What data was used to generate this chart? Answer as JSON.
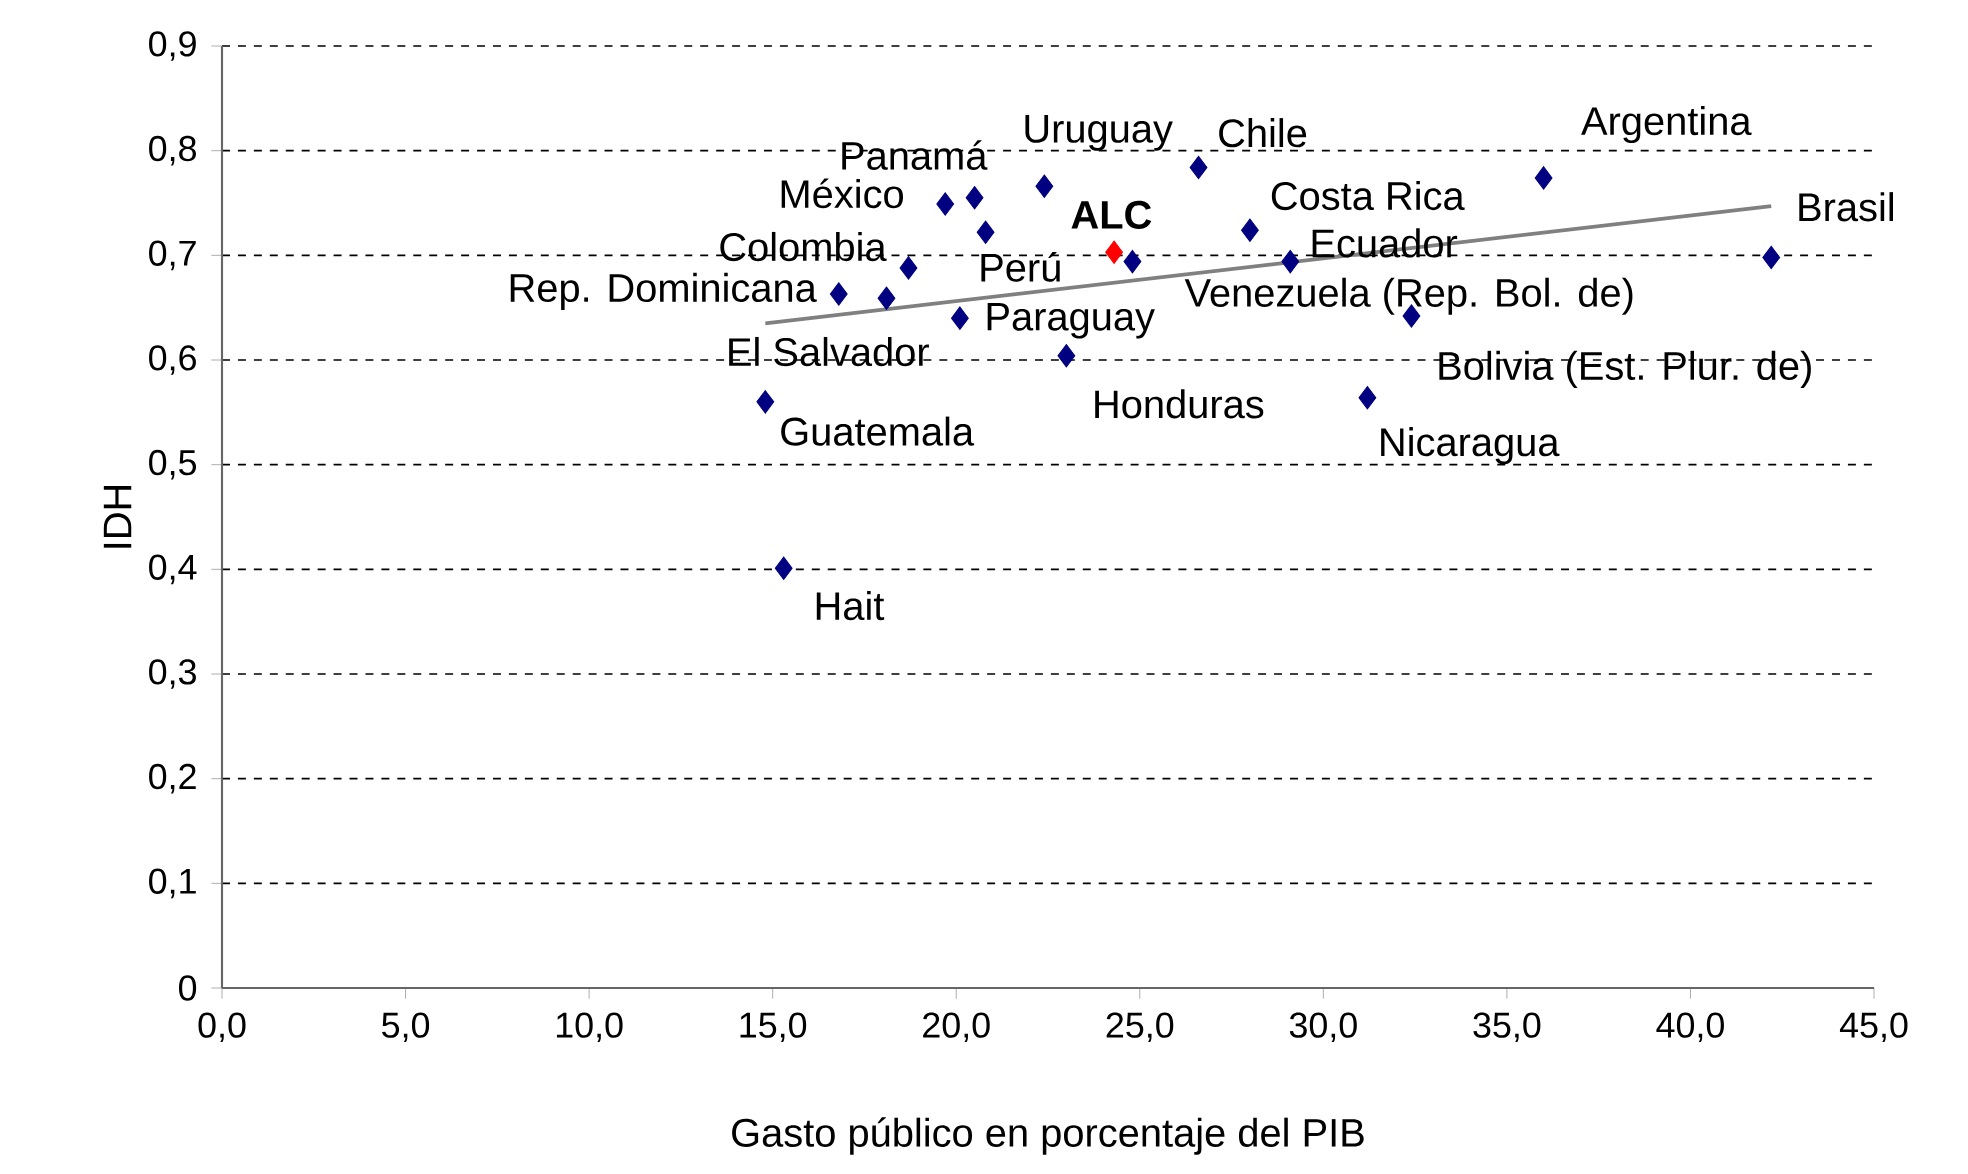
{
  "chart_data": {
    "type": "scatter",
    "xlabel": "Gasto público en porcentaje del PIB",
    "ylabel": "IDH",
    "xlim": [
      0,
      45
    ],
    "ylim": [
      0,
      0.9
    ],
    "xticks": [
      {
        "value": 0,
        "label": "0,0"
      },
      {
        "value": 5,
        "label": "5,0"
      },
      {
        "value": 10,
        "label": "10,0"
      },
      {
        "value": 15,
        "label": "15,0"
      },
      {
        "value": 20,
        "label": "20,0"
      },
      {
        "value": 25,
        "label": "25,0"
      },
      {
        "value": 30,
        "label": "30,0"
      },
      {
        "value": 35,
        "label": "35,0"
      },
      {
        "value": 40,
        "label": "40,0"
      },
      {
        "value": 45,
        "label": "45,0"
      }
    ],
    "yticks": [
      0,
      {
        "value": 0.1,
        "label": "0,1"
      },
      {
        "value": 0.2,
        "label": "0,2"
      },
      {
        "value": 0.3,
        "label": "0,3"
      },
      {
        "value": 0.4,
        "label": "0,4"
      },
      {
        "value": 0.5,
        "label": "0,5"
      },
      {
        "value": 0.6,
        "label": "0,6"
      },
      {
        "value": 0.7,
        "label": "0,7"
      },
      {
        "value": 0.8,
        "label": "0,8"
      },
      {
        "value": 0.9,
        "label": "0,9"
      }
    ],
    "grid": "y",
    "marker": "diamond",
    "series": [
      {
        "color": "#000080",
        "x": [
          14.8,
          15.3,
          16.8,
          18.1,
          18.7,
          19.7,
          20.5,
          20.8,
          20.1,
          22.4,
          23.0,
          26.6,
          28.0,
          29.1,
          24.8,
          32.4,
          31.2,
          36.0,
          42.2
        ],
        "values": [
          0.56,
          0.401,
          0.663,
          0.659,
          0.688,
          0.749,
          0.755,
          0.722,
          0.64,
          0.766,
          0.604,
          0.784,
          0.724,
          0.694,
          0.694,
          0.642,
          0.564,
          0.774,
          0.698
        ]
      },
      {
        "name": "ALC",
        "color": "#ff0000",
        "x": [
          24.3
        ],
        "values": [
          0.703
        ]
      },
      {
        "type": "line",
        "color": "#808080",
        "marker": "none",
        "x": [
          14.8,
          42.2
        ],
        "values": [
          0.635,
          0.747
        ]
      }
    ],
    "annotations": [
      {
        "text": "Guatemala",
        "x": 14.8,
        "y": 0.56
      },
      {
        "text": "Hait",
        "x": 15.3,
        "y": 0.401
      },
      {
        "text": "Rep. Dominicana",
        "x": 16.8,
        "y": 0.663
      },
      {
        "text": "El Salvador",
        "x": 18.1,
        "y": 0.659
      },
      {
        "text": "Colombia",
        "x": 18.7,
        "y": 0.688
      },
      {
        "text": "México",
        "x": 19.7,
        "y": 0.749
      },
      {
        "text": "Panamá",
        "x": 20.5,
        "y": 0.755
      },
      {
        "text": "Perú",
        "x": 20.8,
        "y": 0.722
      },
      {
        "text": "Paraguay",
        "x": 20.1,
        "y": 0.64
      },
      {
        "text": "Uruguay",
        "x": 22.4,
        "y": 0.766
      },
      {
        "text": "Honduras",
        "x": 23.0,
        "y": 0.604
      },
      {
        "text": "Chile",
        "x": 26.6,
        "y": 0.784
      },
      {
        "text": "Costa Rica",
        "x": 28.0,
        "y": 0.724
      },
      {
        "text": "Ecuador",
        "x": 29.1,
        "y": 0.694
      },
      {
        "text": "Venezuela (Rep. Bol. de)",
        "x": 24.8,
        "y": 0.694
      },
      {
        "text": "Bolivia (Est. Plur. de)",
        "x": 32.4,
        "y": 0.642
      },
      {
        "text": "Nicaragua",
        "x": 31.2,
        "y": 0.564
      },
      {
        "text": "Argentina",
        "x": 36.0,
        "y": 0.774
      },
      {
        "text": "Brasil",
        "x": 42.2,
        "y": 0.698
      }
    ]
  }
}
